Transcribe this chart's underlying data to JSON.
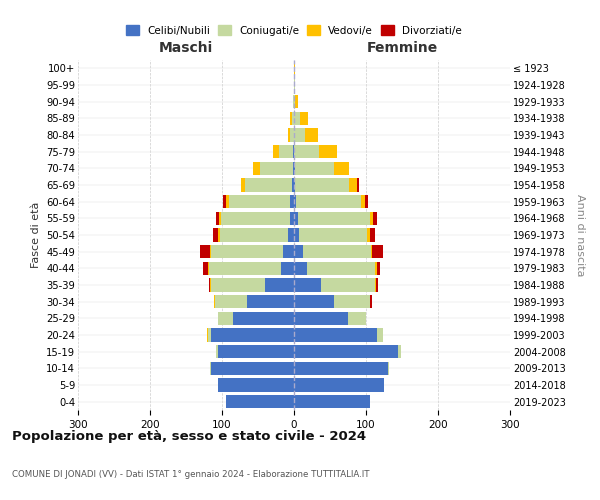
{
  "age_groups": [
    "0-4",
    "5-9",
    "10-14",
    "15-19",
    "20-24",
    "25-29",
    "30-34",
    "35-39",
    "40-44",
    "45-49",
    "50-54",
    "55-59",
    "60-64",
    "65-69",
    "70-74",
    "75-79",
    "80-84",
    "85-89",
    "90-94",
    "95-99",
    "100+"
  ],
  "birth_years": [
    "2019-2023",
    "2014-2018",
    "2009-2013",
    "2004-2008",
    "1999-2003",
    "1994-1998",
    "1989-1993",
    "1984-1988",
    "1979-1983",
    "1974-1978",
    "1969-1973",
    "1964-1968",
    "1959-1963",
    "1954-1958",
    "1949-1953",
    "1944-1948",
    "1939-1943",
    "1934-1938",
    "1929-1933",
    "1924-1928",
    "≤ 1923"
  ],
  "colors": {
    "celibi": "#4472c4",
    "coniugati": "#c5d9a0",
    "vedovi": "#ffc000",
    "divorziati": "#c00000"
  },
  "maschi": {
    "celibi": [
      95,
      105,
      115,
      105,
      115,
      85,
      65,
      40,
      18,
      15,
      8,
      6,
      5,
      3,
      2,
      1,
      0,
      0,
      0,
      0,
      0
    ],
    "coniugati": [
      0,
      0,
      2,
      3,
      5,
      20,
      45,
      75,
      100,
      100,
      95,
      95,
      85,
      65,
      45,
      20,
      6,
      3,
      1,
      0,
      0
    ],
    "vedovi": [
      0,
      0,
      0,
      0,
      1,
      1,
      1,
      1,
      1,
      1,
      2,
      3,
      5,
      5,
      10,
      8,
      3,
      2,
      0,
      0,
      0
    ],
    "divorziati": [
      0,
      0,
      0,
      0,
      0,
      0,
      0,
      2,
      8,
      15,
      8,
      5,
      3,
      0,
      0,
      0,
      0,
      0,
      0,
      0,
      0
    ]
  },
  "femmine": {
    "celibi": [
      105,
      125,
      130,
      145,
      115,
      75,
      55,
      38,
      18,
      12,
      7,
      5,
      3,
      2,
      1,
      0,
      0,
      0,
      0,
      0,
      0
    ],
    "coniugati": [
      0,
      0,
      2,
      3,
      8,
      25,
      50,
      75,
      95,
      95,
      95,
      100,
      90,
      75,
      55,
      35,
      15,
      8,
      2,
      1,
      0
    ],
    "vedovi": [
      0,
      0,
      0,
      0,
      0,
      0,
      0,
      1,
      2,
      2,
      3,
      5,
      5,
      10,
      20,
      25,
      18,
      12,
      3,
      1,
      1
    ],
    "divorziati": [
      0,
      0,
      0,
      0,
      0,
      0,
      3,
      3,
      5,
      15,
      8,
      5,
      5,
      3,
      0,
      0,
      0,
      0,
      0,
      0,
      0
    ]
  },
  "xlim": 300,
  "title": "Popolazione per età, sesso e stato civile - 2024",
  "subtitle": "COMUNE DI JONADI (VV) - Dati ISTAT 1° gennaio 2024 - Elaborazione TUTTITALIA.IT",
  "ylabel_left": "Fasce di età",
  "ylabel_right": "Anni di nascita",
  "xlabel_maschi": "Maschi",
  "xlabel_femmine": "Femmine",
  "bg_color": "#ffffff",
  "grid_color": "#cccccc",
  "legend_labels": [
    "Celibi/Nubili",
    "Coniugati/e",
    "Vedovi/e",
    "Divorziati/e"
  ]
}
